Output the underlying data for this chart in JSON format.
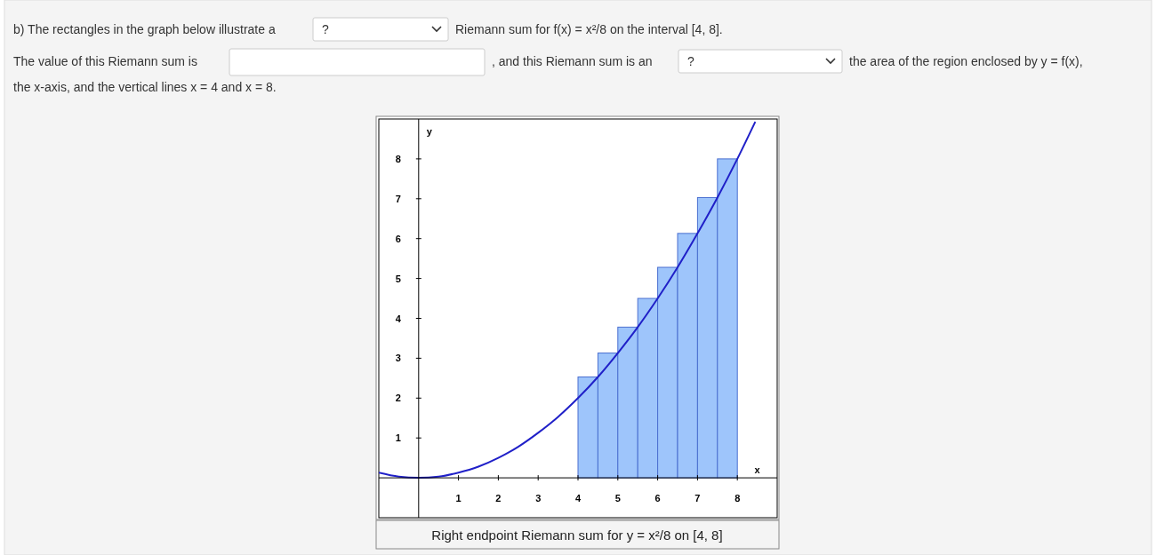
{
  "chart_data": {
    "type": "histogram",
    "title": "Right endpoint Riemann sum for y = x²/8 on [4, 8]",
    "xlabel": "x",
    "ylabel": "y",
    "xlim": [
      -1,
      9
    ],
    "ylim": [
      -1,
      9
    ],
    "xticks": [
      1,
      2,
      3,
      4,
      5,
      6,
      7,
      8
    ],
    "yticks": [
      1,
      2,
      3,
      4,
      5,
      6,
      7,
      8
    ],
    "grid": false,
    "series": [
      {
        "color": "#9ec5fb",
        "bins": [
          4,
          4.5,
          5,
          5.5,
          6,
          6.5,
          7,
          7.5,
          8
        ],
        "values": [
          2.53,
          3.13,
          3.78,
          4.5,
          5.28,
          6.13,
          7.03,
          8
        ]
      },
      {
        "type": "line",
        "color": "#2020c8",
        "x": [
          -1,
          -0.5,
          0,
          0.5,
          1,
          1.5,
          2,
          2.5,
          3,
          3.5,
          4,
          4.5,
          5,
          5.5,
          6,
          6.5,
          7,
          7.5,
          8,
          8.45
        ],
        "values": [
          0.13,
          0.03,
          0,
          0.03,
          0.13,
          0.28,
          0.5,
          0.78,
          1.13,
          1.53,
          2,
          2.53,
          3.13,
          3.78,
          4.5,
          5.28,
          6.13,
          7.03,
          8,
          8.93
        ]
      }
    ],
    "annotations": [
      "b) The rectangles in the graph below illustrate a",
      "?",
      "Riemann sum for f(x) = x²/8 on the interval [4, 8].",
      "The value of this Riemann sum is",
      ", and this Riemann sum is an",
      "?",
      "the area of the region enclosed by y = f(x),",
      "the x-axis, and the vertical lines x = 4 and x = 8."
    ]
  }
}
